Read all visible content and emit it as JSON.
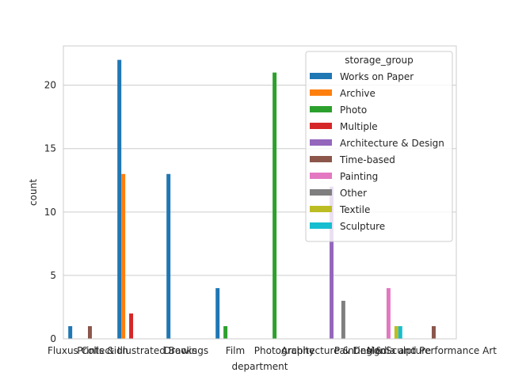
{
  "chart_data": {
    "type": "bar",
    "xlabel": "department",
    "ylabel": "count",
    "ylim": [
      0,
      23.1
    ],
    "yticks": [
      0,
      5,
      10,
      15,
      20
    ],
    "grid": "y",
    "legend_title": "storage_group",
    "legend_position": "upper-right",
    "categories": [
      "Fluxus Collection",
      "Prints & Illustrated Books",
      "Drawings",
      "Film",
      "Photography",
      "Architecture & Design",
      "Painting & Sculpture",
      "Media and Performance Art"
    ],
    "series": [
      {
        "name": "Works on Paper",
        "color": "#1f77b4",
        "values": [
          1,
          22,
          13,
          4,
          0,
          0,
          0,
          0
        ]
      },
      {
        "name": "Archive",
        "color": "#ff7f0e",
        "values": [
          0,
          13,
          0,
          0,
          0,
          0,
          0,
          0
        ]
      },
      {
        "name": "Photo",
        "color": "#2ca02c",
        "values": [
          0,
          0,
          0,
          1,
          21,
          0,
          0,
          0
        ]
      },
      {
        "name": "Multiple",
        "color": "#d62728",
        "values": [
          0,
          2,
          0,
          0,
          0,
          0,
          0,
          0
        ]
      },
      {
        "name": "Architecture & Design",
        "color": "#9467bd",
        "values": [
          0,
          0,
          0,
          0,
          0,
          12,
          0,
          0
        ]
      },
      {
        "name": "Time-based",
        "color": "#8c564b",
        "values": [
          1,
          0,
          0,
          0,
          0,
          0,
          0,
          1
        ]
      },
      {
        "name": "Painting",
        "color": "#e377c2",
        "values": [
          0,
          0,
          0,
          0,
          0,
          0,
          4,
          0
        ]
      },
      {
        "name": "Other",
        "color": "#7f7f7f",
        "values": [
          0,
          0,
          0,
          0,
          0,
          3,
          0,
          0
        ]
      },
      {
        "name": "Textile",
        "color": "#bcbd22",
        "values": [
          0,
          0,
          0,
          0,
          0,
          0,
          1,
          0
        ]
      },
      {
        "name": "Sculpture",
        "color": "#17becf",
        "values": [
          0,
          0,
          0,
          0,
          0,
          0,
          1,
          0
        ]
      }
    ]
  }
}
